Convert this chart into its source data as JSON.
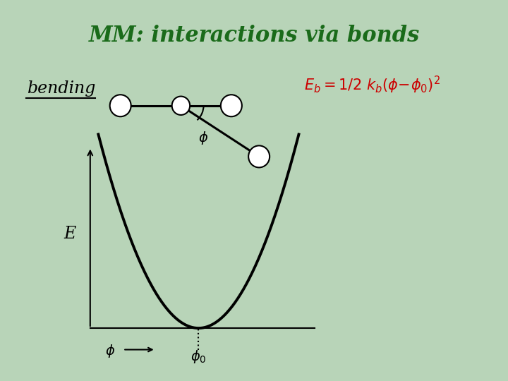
{
  "title": "MM: interactions via bonds",
  "title_color": "#1a6b1a",
  "title_fontsize": 22,
  "bg_color": "#b8d4b8",
  "bending_label": "bending",
  "equation_color": "#cc0000",
  "E_label": "E"
}
